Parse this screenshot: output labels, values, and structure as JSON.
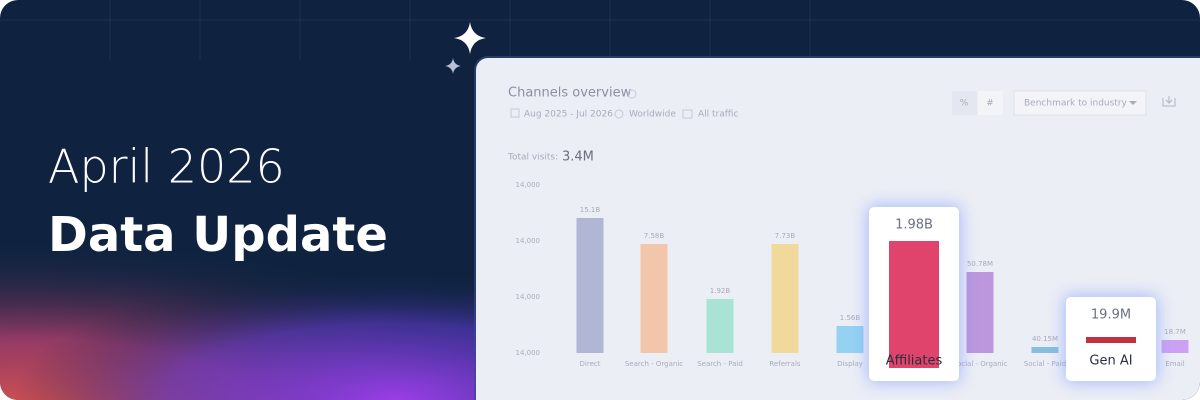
{
  "banner": {
    "title_line1": "April 2026",
    "title_line2": "Data Update"
  },
  "panel": {
    "title": "Channels overview",
    "filters": [
      "Aug 2025 - Jul 2026",
      "Worldwide",
      "All traffic"
    ],
    "toggles": [
      "%",
      "#"
    ],
    "dropdown": "Benchmark to industry",
    "total_label": "Total visits:",
    "total_value": "3.4M",
    "y_axis_labels": [
      "14,000",
      "14,000",
      "14,000",
      "14,000"
    ],
    "channels": [
      {
        "name": "Direct",
        "value_label": "15.1B",
        "color": "#a6acce",
        "highlighted": false
      },
      {
        "name": "Search - Organic",
        "value_label": "7.58B",
        "color": "#f4bd9c",
        "highlighted": false
      },
      {
        "name": "Search - Paid",
        "value_label": "1.92B",
        "color": "#9ee0cf",
        "highlighted": false
      },
      {
        "name": "Referrals",
        "value_label": "7.73B",
        "color": "#f1d58a",
        "highlighted": false
      },
      {
        "name": "Display",
        "value_label": "1.56B",
        "color": "#86cdf1",
        "highlighted": false
      },
      {
        "name": "Affiliates",
        "value_label": "1.98B",
        "color": "#e0446d",
        "highlighted": true
      },
      {
        "name": "Social - Organic",
        "value_label": "50.78M",
        "color": "#b487d8",
        "highlighted": false
      },
      {
        "name": "Social - Paid",
        "value_label": "40.15M",
        "color": "#74b5da",
        "highlighted": false
      },
      {
        "name": "Gen AI",
        "value_label": "19.9M",
        "color": "#c2313e",
        "highlighted": true
      },
      {
        "name": "Email",
        "value_label": "18.7M",
        "color": "#c793f3",
        "highlighted": false
      }
    ]
  }
}
